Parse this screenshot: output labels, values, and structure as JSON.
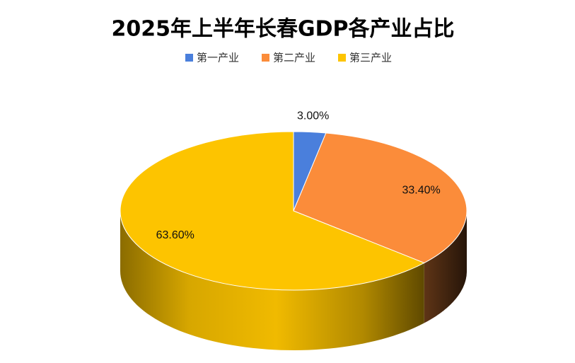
{
  "chart_data": {
    "type": "pie3d",
    "title": "2025年上半年长春GDP各产业占比",
    "categories": [
      "第一产业",
      "第二产业",
      "第三产业"
    ],
    "values": [
      3.0,
      33.4,
      63.6
    ],
    "value_labels": [
      "3.00%",
      "33.40%",
      "63.60%"
    ],
    "colors": [
      "#4a7fdc",
      "#fb8c3a",
      "#fdc400"
    ],
    "legend": "top"
  }
}
